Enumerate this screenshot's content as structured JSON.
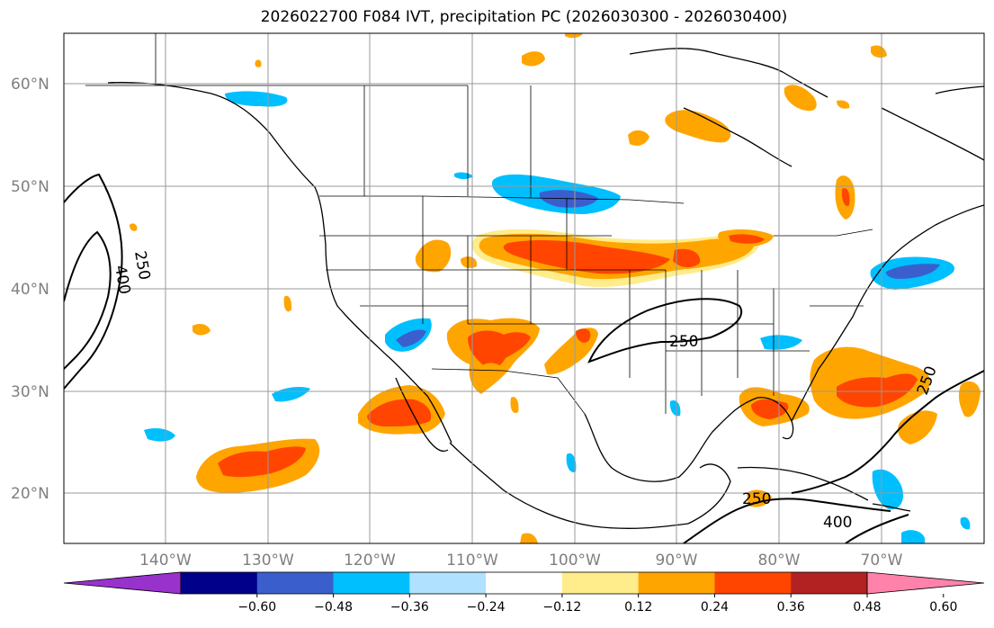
{
  "title": "2026022700 F084 IVT, precipitation PC (2026030300 - 2026030400)",
  "lat_labels": [
    "60°N",
    "50°N",
    "40°N",
    "30°N",
    "20°N"
  ],
  "lon_labels": [
    "140°W",
    "130°W",
    "120°W",
    "110°W",
    "100°W",
    "90°W",
    "80°W",
    "70°W"
  ],
  "colorbar": {
    "tick_labels": [
      "−0.60",
      "−0.48",
      "−0.36",
      "−0.24",
      "−0.12",
      "0.12",
      "0.24",
      "0.36",
      "0.48",
      "0.60"
    ],
    "colors": [
      "#9932cc",
      "#00008b",
      "#3a5fcd",
      "#00bfff",
      "#b0e2ff",
      "#ffffff",
      "#ffec8b",
      "#ffa500",
      "#ff4500",
      "#b22222",
      "#ff82ab"
    ]
  },
  "contour_labels": [
    "250",
    "400",
    "250",
    "250",
    "250",
    "400"
  ],
  "colors": {
    "negative_core": "#3a5fcd",
    "negative": "#00bfff",
    "negative_light": "#b0e2ff",
    "positive_light": "#ffec8b",
    "positive": "#ffa500",
    "positive_core": "#ff4500"
  }
}
